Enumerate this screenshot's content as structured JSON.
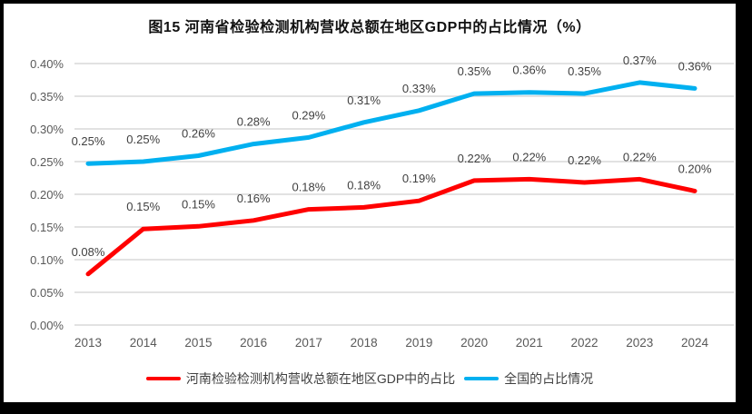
{
  "chart_data": {
    "type": "line",
    "title": "图15  河南省检验检测机构营收总额在地区GDP中的占比情况（%）",
    "categories": [
      "2013",
      "2014",
      "2015",
      "2016",
      "2017",
      "2018",
      "2019",
      "2020",
      "2021",
      "2022",
      "2023",
      "2024"
    ],
    "series": [
      {
        "name": "河南检验检测机构营收总额在地区GDP中的占比",
        "color": "#FF0000",
        "values": [
          0.08,
          0.15,
          0.15,
          0.16,
          0.18,
          0.18,
          0.19,
          0.22,
          0.22,
          0.22,
          0.22,
          0.2
        ],
        "labels": [
          "0.08%",
          "0.15%",
          "0.15%",
          "0.16%",
          "0.18%",
          "0.18%",
          "0.19%",
          "0.22%",
          "0.22%",
          "0.22%",
          "0.22%",
          "0.20%"
        ],
        "plot_values": [
          0.078,
          0.147,
          0.151,
          0.16,
          0.177,
          0.18,
          0.19,
          0.221,
          0.223,
          0.218,
          0.223,
          0.205
        ]
      },
      {
        "name": "全国的占比情况",
        "color": "#00B0F0",
        "values": [
          0.25,
          0.25,
          0.26,
          0.28,
          0.29,
          0.31,
          0.33,
          0.35,
          0.36,
          0.35,
          0.37,
          0.36
        ],
        "labels": [
          "0.25%",
          "0.25%",
          "0.26%",
          "0.28%",
          "0.29%",
          "0.31%",
          "0.33%",
          "0.35%",
          "0.36%",
          "0.35%",
          "0.37%",
          "0.36%"
        ],
        "plot_values": [
          0.247,
          0.25,
          0.259,
          0.277,
          0.287,
          0.31,
          0.328,
          0.354,
          0.356,
          0.354,
          0.371,
          0.362
        ]
      }
    ],
    "xlabel": "",
    "ylabel": "",
    "ylim": [
      0.0,
      0.4
    ],
    "ytick_step": 0.05,
    "ytick_labels": [
      "0.00%",
      "0.05%",
      "0.10%",
      "0.15%",
      "0.20%",
      "0.25%",
      "0.30%",
      "0.35%",
      "0.40%"
    ],
    "grid": true,
    "legend_position": "bottom"
  },
  "colors": {
    "gridline": "#D9D9D9",
    "axis_text": "#595959",
    "data_label_text": "#404040",
    "frame_border": "#000000",
    "henan_line": "#FF0000",
    "national_line": "#00B0F0"
  }
}
